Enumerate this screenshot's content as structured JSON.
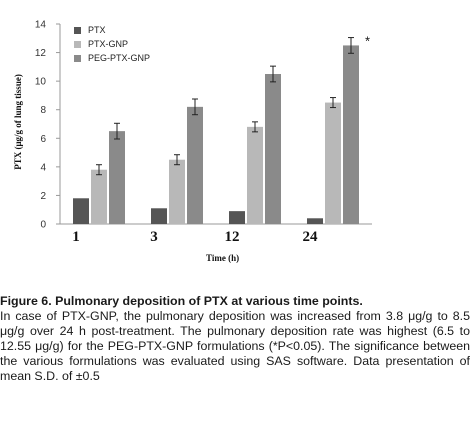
{
  "chart_data": {
    "type": "bar",
    "categories": [
      "1",
      "3",
      "12",
      "24"
    ],
    "series": [
      {
        "name": "PTX",
        "color": "#555555",
        "values": [
          1.8,
          1.1,
          0.9,
          0.4
        ],
        "errors": [
          0.0,
          0.0,
          0.0,
          0.0
        ]
      },
      {
        "name": "PTX-GNP",
        "color": "#b8b8b8",
        "values": [
          3.8,
          4.5,
          6.8,
          8.5
        ],
        "errors": [
          0.35,
          0.35,
          0.35,
          0.35
        ]
      },
      {
        "name": "PEG-PTX-GNP",
        "color": "#8a8a8a",
        "values": [
          6.5,
          8.2,
          10.5,
          12.5
        ],
        "errors": [
          0.55,
          0.55,
          0.55,
          0.55
        ]
      }
    ],
    "xlabel": "Time (h)",
    "ylabel": "PTX (μg/g of lung tissue)",
    "ylim": [
      0,
      14
    ],
    "yticks": [
      0,
      2,
      4,
      6,
      8,
      10,
      12,
      14
    ],
    "legend_position": "top-left",
    "grid": false,
    "annotations": [
      {
        "category": "24",
        "series": "PEG-PTX-GNP",
        "text": "*"
      }
    ]
  },
  "caption": {
    "title": "Figure 6. Pulmonary deposition of PTX at various time points.",
    "body": "In case of PTX-GNP, the pulmonary deposition was increased from 3.8 μg/g to 8.5 μg/g over 24 h post-treatment. The pulmonary deposition rate was highest (6.5 to 12.55 μg/g) for the PEG-PTX-GNP formulations (*P<0.05). The significance between the various formulations was evaluated using SAS software. Data presentation of mean S.D. of ±0.5"
  }
}
